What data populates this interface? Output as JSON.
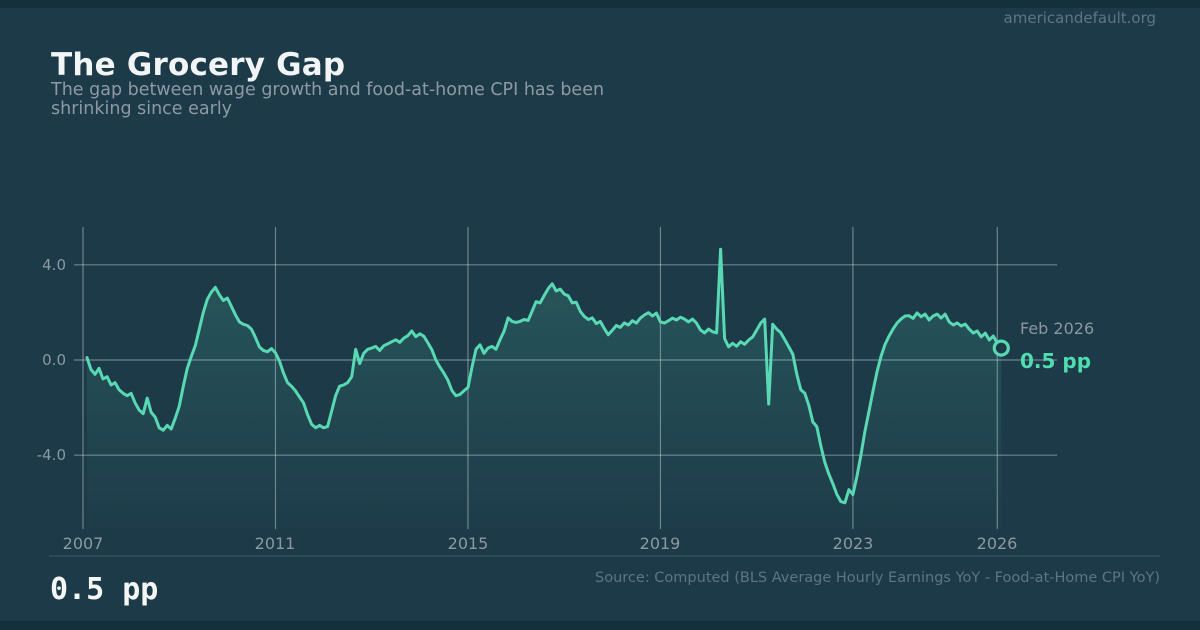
{
  "watermark": "americandefault.org",
  "header": {
    "title": "The Grocery Gap",
    "subtitle_line1": "The gap between wage growth and food-at-home CPI has been",
    "subtitle_line2": "shrinking since early"
  },
  "annotation": {
    "date_label": "Feb 2026",
    "value_label": "0.5 pp"
  },
  "footer": {
    "big_value": "0.5 pp",
    "source": "Source: Computed (BLS Average Hourly Earnings YoY - Food-at-Home CPI YoY)"
  },
  "colors": {
    "background": "#1d3a48",
    "edge_bar": "#15303d",
    "line": "#58d8b3",
    "fill_top": "rgba(87,215,178,0.20)",
    "fill_bottom": "rgba(87,215,178,0.01)",
    "grid": "rgba(225,236,240,0.42)",
    "divider": "rgba(225,236,240,0.18)",
    "accent_value": "#4fdcae"
  },
  "chart_data": {
    "type": "line",
    "title": "The Grocery Gap",
    "series_name": "Wage growth minus food-at-home CPI gap (percentage points)",
    "frequency": "monthly",
    "x_start": "2007-02",
    "x_end": "2026-02",
    "x_tick_years": [
      2007,
      2011,
      2015,
      2019,
      2023,
      2026
    ],
    "x_tick_labels": [
      "2007",
      "2011",
      "2015",
      "2019",
      "2023",
      "2026"
    ],
    "y_ticks": [
      4.0,
      0.0,
      -4.0
    ],
    "y_tick_labels": [
      "4.0",
      "0.0",
      "-4.0"
    ],
    "ylim": [
      -7.0,
      5.6
    ],
    "grid": true,
    "last_point": {
      "label": "Feb 2026",
      "value": 0.5,
      "marker": "open-circle"
    },
    "values": [
      0.1,
      -0.4,
      -0.6,
      -0.35,
      -0.8,
      -0.7,
      -1.05,
      -0.95,
      -1.25,
      -1.4,
      -1.5,
      -1.4,
      -1.8,
      -2.1,
      -2.25,
      -1.6,
      -2.2,
      -2.4,
      -2.85,
      -2.95,
      -2.75,
      -2.9,
      -2.45,
      -1.95,
      -1.1,
      -0.35,
      0.15,
      0.6,
      1.3,
      2.0,
      2.55,
      2.85,
      3.05,
      2.75,
      2.5,
      2.6,
      2.25,
      1.9,
      1.6,
      1.5,
      1.45,
      1.3,
      0.95,
      0.55,
      0.4,
      0.35,
      0.48,
      0.3,
      -0.05,
      -0.55,
      -0.95,
      -1.1,
      -1.3,
      -1.55,
      -1.8,
      -2.3,
      -2.7,
      -2.85,
      -2.75,
      -2.85,
      -2.8,
      -2.15,
      -1.5,
      -1.1,
      -1.05,
      -0.95,
      -0.7,
      0.45,
      -0.15,
      0.28,
      0.45,
      0.5,
      0.57,
      0.4,
      0.6,
      0.68,
      0.77,
      0.85,
      0.74,
      0.92,
      1.02,
      1.22,
      0.98,
      1.1,
      1.0,
      0.72,
      0.43,
      0.0,
      -0.3,
      -0.55,
      -0.85,
      -1.28,
      -1.5,
      -1.45,
      -1.3,
      -1.15,
      -0.3,
      0.45,
      0.64,
      0.28,
      0.5,
      0.57,
      0.45,
      0.85,
      1.2,
      1.77,
      1.62,
      1.58,
      1.62,
      1.7,
      1.66,
      2.05,
      2.45,
      2.4,
      2.7,
      3.0,
      3.2,
      2.9,
      2.98,
      2.77,
      2.7,
      2.4,
      2.43,
      2.05,
      1.83,
      1.7,
      1.77,
      1.53,
      1.62,
      1.32,
      1.06,
      1.25,
      1.45,
      1.37,
      1.56,
      1.47,
      1.65,
      1.55,
      1.76,
      1.89,
      1.99,
      1.85,
      1.97,
      1.6,
      1.55,
      1.65,
      1.76,
      1.68,
      1.8,
      1.72,
      1.6,
      1.72,
      1.55,
      1.26,
      1.14,
      1.3,
      1.19,
      1.14,
      4.65,
      0.9,
      0.55,
      0.7,
      0.58,
      0.77,
      0.66,
      0.84,
      0.97,
      1.26,
      1.55,
      1.72,
      -1.85,
      1.5,
      1.3,
      1.15,
      0.85,
      0.55,
      0.25,
      -0.6,
      -1.25,
      -1.4,
      -1.9,
      -2.6,
      -2.8,
      -3.6,
      -4.3,
      -4.8,
      -5.2,
      -5.65,
      -5.95,
      -6.0,
      -5.45,
      -5.65,
      -4.9,
      -4.0,
      -3.0,
      -2.15,
      -1.3,
      -0.5,
      0.15,
      0.65,
      1.0,
      1.3,
      1.55,
      1.72,
      1.85,
      1.86,
      1.75,
      1.98,
      1.82,
      1.93,
      1.68,
      1.85,
      1.93,
      1.76,
      1.93,
      1.6,
      1.47,
      1.56,
      1.43,
      1.51,
      1.3,
      1.13,
      1.22,
      0.97,
      1.13,
      0.84,
      1.01,
      0.71,
      0.5
    ]
  }
}
